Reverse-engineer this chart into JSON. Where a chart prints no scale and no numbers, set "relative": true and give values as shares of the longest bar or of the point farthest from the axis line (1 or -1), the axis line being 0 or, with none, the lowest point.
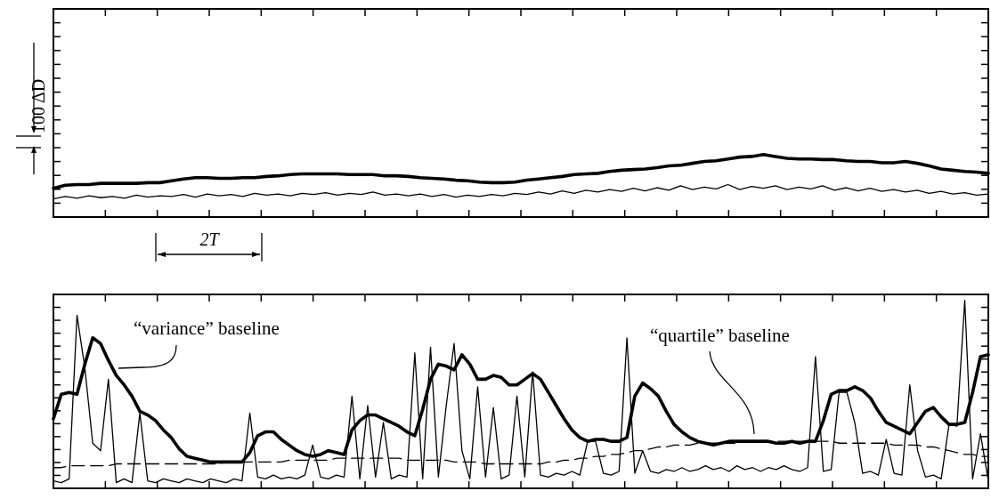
{
  "chart_data": [
    {
      "type": "line",
      "relative": true,
      "annotations": [
        "100 ΔD",
        "2T"
      ],
      "categories": [
        null,
        null,
        null,
        null,
        null,
        null,
        null,
        null,
        null,
        null,
        null,
        null,
        null,
        null,
        null,
        null,
        null,
        null,
        null,
        null,
        null,
        null,
        null,
        null,
        null,
        null,
        null,
        null,
        null,
        null,
        null,
        null,
        null,
        null,
        null,
        null,
        null,
        null,
        null,
        null,
        null,
        null,
        null,
        null,
        null,
        null,
        null,
        null,
        null,
        null,
        null,
        null,
        null,
        null,
        null,
        null,
        null,
        null,
        null,
        null,
        null,
        null,
        null,
        null,
        null,
        null,
        null,
        null,
        null,
        null,
        null,
        null,
        null,
        null,
        null,
        null,
        null,
        null,
        null,
        null
      ],
      "series": [
        {
          "color": "#000000",
          "values": [
            0.29,
            0.33,
            0.3,
            0.34,
            0.31,
            0.33,
            0.3,
            0.35,
            0.32,
            0.34,
            0.33,
            0.36,
            0.32,
            0.37,
            0.34,
            0.36,
            0.33,
            0.38,
            0.35,
            0.37,
            0.34,
            0.38,
            0.36,
            0.39,
            0.35,
            0.38,
            0.36,
            0.4,
            0.35,
            0.37,
            0.34,
            0.37,
            0.33,
            0.36,
            0.32,
            0.35,
            0.33,
            0.36,
            0.34,
            0.38,
            0.36,
            0.4,
            0.37,
            0.42,
            0.38,
            0.43,
            0.4,
            0.44,
            0.41,
            0.46,
            0.42,
            0.47,
            0.43,
            0.5,
            0.44,
            0.48,
            0.45,
            0.52,
            0.44,
            0.49,
            0.46,
            0.5,
            0.44,
            0.48,
            0.45,
            0.5,
            0.43,
            0.47,
            0.42,
            0.46,
            0.41,
            0.44,
            0.4,
            0.43,
            0.38,
            0.41,
            0.37,
            0.39,
            0.35,
            0.37
          ]
        },
        {
          "color": "#000000",
          "values": [
            0.46,
            0.51,
            0.52,
            0.52,
            0.54,
            0.54,
            0.54,
            0.54,
            0.55,
            0.55,
            0.58,
            0.61,
            0.63,
            0.63,
            0.62,
            0.62,
            0.63,
            0.63,
            0.65,
            0.66,
            0.68,
            0.69,
            0.69,
            0.69,
            0.69,
            0.68,
            0.68,
            0.68,
            0.66,
            0.66,
            0.65,
            0.63,
            0.62,
            0.61,
            0.59,
            0.58,
            0.56,
            0.55,
            0.55,
            0.56,
            0.59,
            0.61,
            0.63,
            0.65,
            0.68,
            0.69,
            0.7,
            0.73,
            0.75,
            0.76,
            0.77,
            0.79,
            0.82,
            0.83,
            0.86,
            0.89,
            0.9,
            0.93,
            0.96,
            0.97,
            1.0,
            0.97,
            0.94,
            0.93,
            0.93,
            0.92,
            0.92,
            0.9,
            0.89,
            0.89,
            0.87,
            0.87,
            0.89,
            0.86,
            0.82,
            0.77,
            0.75,
            0.73,
            0.72,
            0.7
          ]
        }
      ]
    },
    {
      "type": "line",
      "relative": true,
      "categories": [
        null,
        null,
        null,
        null,
        null,
        null,
        null,
        null,
        null,
        null,
        null,
        null,
        null,
        null,
        null,
        null,
        null,
        null,
        null,
        null,
        null,
        null,
        null,
        null,
        null,
        null,
        null,
        null,
        null,
        null,
        null,
        null,
        null,
        null,
        null,
        null,
        null,
        null,
        null,
        null,
        null,
        null,
        null,
        null,
        null,
        null,
        null,
        null,
        null,
        null,
        null,
        null,
        null,
        null,
        null,
        null,
        null,
        null,
        null,
        null,
        null,
        null,
        null,
        null,
        null,
        null,
        null,
        null,
        null,
        null,
        null,
        null,
        null,
        null,
        null,
        null,
        null,
        null,
        null,
        null,
        null,
        null,
        null,
        null,
        null,
        null,
        null,
        null,
        null,
        null,
        null,
        null,
        null,
        null,
        null,
        null,
        null,
        null,
        null,
        null,
        null,
        null,
        null,
        null,
        null,
        null,
        null,
        null,
        null,
        null,
        null,
        null,
        null,
        null,
        null,
        null,
        null,
        null,
        null,
        null
      ],
      "series": [
        {
          "color": "#000000",
          "values": [
            0.04,
            0.03,
            0.05,
            0.92,
            0.64,
            0.24,
            0.2,
            0.58,
            0.03,
            0.05,
            0.03,
            0.4,
            0.04,
            0.03,
            0.05,
            0.04,
            0.03,
            0.05,
            0.04,
            0.03,
            0.05,
            0.04,
            0.03,
            0.05,
            0.04,
            0.4,
            0.06,
            0.05,
            0.07,
            0.05,
            0.06,
            0.05,
            0.07,
            0.23,
            0.06,
            0.05,
            0.07,
            0.06,
            0.49,
            0.05,
            0.44,
            0.06,
            0.35,
            0.05,
            0.07,
            0.06,
            0.72,
            0.05,
            0.75,
            0.06,
            0.44,
            0.77,
            0.2,
            0.05,
            0.54,
            0.06,
            0.43,
            0.05,
            0.07,
            0.49,
            0.06,
            0.62,
            0.07,
            0.06,
            0.08,
            0.07,
            0.09,
            0.07,
            0.25,
            0.25,
            0.08,
            0.07,
            0.09,
            0.8,
            0.08,
            0.2,
            0.09,
            0.08,
            0.1,
            0.09,
            0.11,
            0.09,
            0.1,
            0.12,
            0.1,
            0.11,
            0.09,
            0.12,
            0.1,
            0.11,
            0.09,
            0.11,
            0.1,
            0.12,
            0.1,
            0.09,
            0.11,
            0.7,
            0.09,
            0.1,
            0.51,
            0.51,
            0.35,
            0.08,
            0.09,
            0.07,
            0.26,
            0.08,
            0.07,
            0.55,
            0.2,
            0.06,
            0.07,
            0.05,
            0.34,
            0.33,
            1.0,
            0.05,
            0.29,
            0.04
          ]
        },
        {
          "name": "“variance” baseline",
          "color": "#000000",
          "values": [
            0.37,
            0.5,
            0.51,
            0.5,
            0.66,
            0.8,
            0.77,
            0.68,
            0.6,
            0.55,
            0.49,
            0.41,
            0.39,
            0.36,
            0.31,
            0.27,
            0.21,
            0.17,
            0.16,
            0.15,
            0.14,
            0.14,
            0.14,
            0.14,
            0.14,
            0.19,
            0.28,
            0.3,
            0.3,
            0.26,
            0.23,
            0.2,
            0.18,
            0.17,
            0.18,
            0.2,
            0.19,
            0.18,
            0.31,
            0.36,
            0.39,
            0.39,
            0.37,
            0.35,
            0.33,
            0.3,
            0.28,
            0.42,
            0.58,
            0.66,
            0.65,
            0.63,
            0.71,
            0.66,
            0.58,
            0.58,
            0.6,
            0.59,
            0.55,
            0.55,
            0.58,
            0.61,
            0.58,
            0.51,
            0.44,
            0.37,
            0.31,
            0.27,
            0.25,
            0.26,
            0.26,
            0.25,
            0.25,
            0.27,
            0.49,
            0.56,
            0.53,
            0.49,
            0.41,
            0.34,
            0.3,
            0.27,
            0.25,
            0.24,
            0.23,
            0.24,
            0.25,
            0.25,
            0.25,
            0.25,
            0.25,
            0.25,
            0.24,
            0.24,
            0.25,
            0.24,
            0.25,
            0.25,
            0.36,
            0.5,
            0.52,
            0.52,
            0.54,
            0.52,
            0.48,
            0.41,
            0.35,
            0.33,
            0.31,
            0.29,
            0.35,
            0.41,
            0.43,
            0.38,
            0.34,
            0.34,
            0.35,
            0.51,
            0.7,
            0.71
          ]
        },
        {
          "name": "“quartile” baseline",
          "color": "#000000",
          "line_style": "dashed",
          "values": [
            0.11,
            0.11,
            0.12,
            0.12,
            0.12,
            0.12,
            0.12,
            0.12,
            0.13,
            0.13,
            0.13,
            0.13,
            0.13,
            0.13,
            0.13,
            0.13,
            0.13,
            0.13,
            0.13,
            0.13,
            0.13,
            0.13,
            0.14,
            0.14,
            0.14,
            0.14,
            0.14,
            0.14,
            0.14,
            0.14,
            0.15,
            0.15,
            0.15,
            0.15,
            0.15,
            0.15,
            0.16,
            0.16,
            0.16,
            0.16,
            0.16,
            0.16,
            0.16,
            0.16,
            0.16,
            0.15,
            0.15,
            0.15,
            0.15,
            0.15,
            0.15,
            0.14,
            0.14,
            0.14,
            0.14,
            0.13,
            0.13,
            0.13,
            0.13,
            0.13,
            0.13,
            0.13,
            0.13,
            0.14,
            0.14,
            0.15,
            0.15,
            0.16,
            0.16,
            0.17,
            0.17,
            0.18,
            0.18,
            0.19,
            0.2,
            0.2,
            0.21,
            0.22,
            0.22,
            0.23,
            0.23,
            0.23,
            0.24,
            0.24,
            0.24,
            0.24,
            0.24,
            0.24,
            0.25,
            0.25,
            0.25,
            0.25,
            0.25,
            0.25,
            0.25,
            0.25,
            0.25,
            0.25,
            0.25,
            0.25,
            0.24,
            0.24,
            0.24,
            0.24,
            0.24,
            0.24,
            0.24,
            0.23,
            0.23,
            0.23,
            0.23,
            0.22,
            0.22,
            0.21,
            0.2,
            0.19,
            0.18,
            0.18,
            0.17,
            0.17
          ]
        }
      ]
    }
  ]
}
